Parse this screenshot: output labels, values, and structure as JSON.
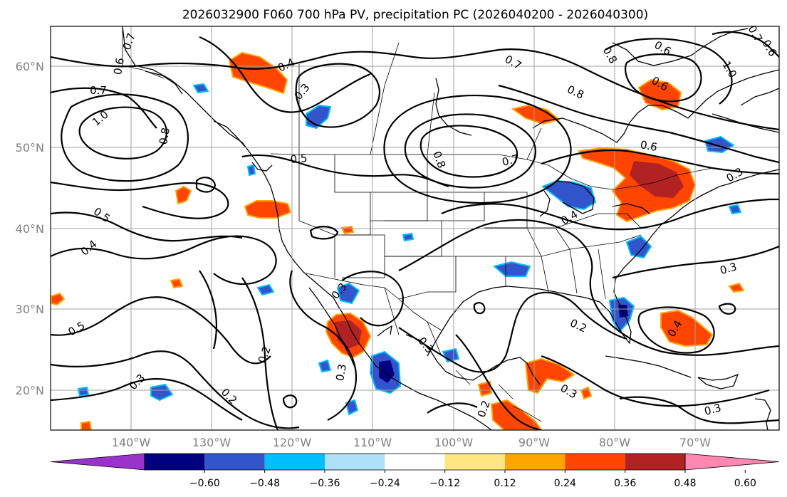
{
  "title": "2026032900 F060 700 hPa PV, precipitation PC (2026040200 - 2026040300)",
  "lat_labels": [
    "60°N",
    "50°N",
    "40°N",
    "30°N",
    "20°N"
  ],
  "lon_labels": [
    "140°W",
    "130°W",
    "120°W",
    "110°W",
    "100°W",
    "90°W",
    "80°W",
    "70°W"
  ],
  "colorbar": {
    "tick_labels": [
      "−0.60",
      "−0.48",
      "−0.36",
      "−0.24",
      "−0.12",
      "0.12",
      "0.24",
      "0.36",
      "0.48",
      "0.60"
    ],
    "colors": [
      "#9933cc",
      "#000080",
      "#3355cc",
      "#00bfff",
      "#aee0fa",
      "#ffffff",
      "#ffe680",
      "#ffa500",
      "#ff4500",
      "#b22222",
      "#ff88b0"
    ]
  },
  "contour_labels": [
    "0.7",
    "0.6",
    "0.4",
    "0.7",
    "1.0",
    "0.8",
    "0.3",
    "0.5",
    "0.8",
    "0.7",
    "0.8",
    "0.6",
    "0.6",
    "0.7",
    "0.5",
    "0.4",
    "0.4",
    "0.5",
    "0.3",
    "0.2",
    "0.3",
    "0.2",
    "0.3",
    "0.2",
    "0.3",
    "0.3",
    "0.2",
    "0.4",
    "0.3",
    "0.3",
    "0.7",
    "0.8",
    "1.0",
    "0.6",
    "0.6",
    "0.3"
  ]
}
